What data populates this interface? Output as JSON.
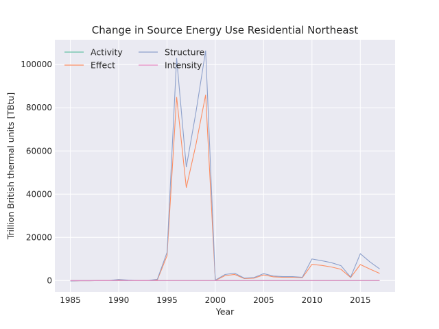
{
  "chart_data": {
    "type": "line",
    "title": "Change in Source Energy Use Residential Northeast",
    "xlabel": "Year",
    "ylabel": "Trillion British thermal units [TBtu]",
    "xlim": [
      1983.4,
      2018.6
    ],
    "ylim": [
      -5300,
      111500
    ],
    "xticks": [
      1985,
      1990,
      1995,
      2000,
      2005,
      2010,
      2015
    ],
    "yticks": [
      0,
      20000,
      40000,
      60000,
      80000,
      100000
    ],
    "grid": true,
    "legend_position": "upper-left",
    "x": [
      1985,
      1986,
      1987,
      1988,
      1989,
      1990,
      1991,
      1992,
      1993,
      1994,
      1995,
      1996,
      1997,
      1998,
      1999,
      2000,
      2001,
      2002,
      2003,
      2004,
      2005,
      2006,
      2007,
      2008,
      2009,
      2010,
      2011,
      2012,
      2013,
      2014,
      2015,
      2016,
      2017
    ],
    "series": [
      {
        "name": "Activity",
        "color": "#66c2a5",
        "values": [
          0,
          0,
          0,
          0,
          0,
          0,
          0,
          0,
          0,
          0,
          0,
          0,
          0,
          0,
          0,
          0,
          0,
          0,
          0,
          0,
          0,
          0,
          0,
          0,
          0,
          0,
          0,
          0,
          0,
          0,
          0,
          0,
          0
        ]
      },
      {
        "name": "Effect",
        "color": "#fc8d62",
        "values": [
          -200,
          -100,
          -100,
          0,
          0,
          300,
          100,
          0,
          0,
          300,
          11500,
          85000,
          43000,
          63000,
          86000,
          0,
          2300,
          2800,
          900,
          1100,
          2600,
          1700,
          1500,
          1500,
          1300,
          7500,
          7000,
          6300,
          5200,
          1400,
          7400,
          5300,
          3300
        ]
      },
      {
        "name": "Structure",
        "color": "#8da0cb",
        "values": [
          -200,
          -100,
          -100,
          0,
          0,
          500,
          200,
          0,
          0,
          600,
          13000,
          103000,
          52500,
          78000,
          106500,
          200,
          2800,
          3400,
          1100,
          1400,
          3200,
          2100,
          1800,
          1800,
          1500,
          10000,
          9200,
          8300,
          6900,
          1600,
          12400,
          8600,
          5400
        ]
      },
      {
        "name": "Intensity",
        "color": "#e78ac3",
        "values": [
          0,
          0,
          0,
          0,
          0,
          0,
          0,
          0,
          0,
          0,
          0,
          0,
          0,
          0,
          0,
          0,
          0,
          0,
          0,
          0,
          0,
          0,
          0,
          0,
          0,
          0,
          0,
          0,
          0,
          0,
          0,
          0,
          0
        ]
      }
    ]
  }
}
